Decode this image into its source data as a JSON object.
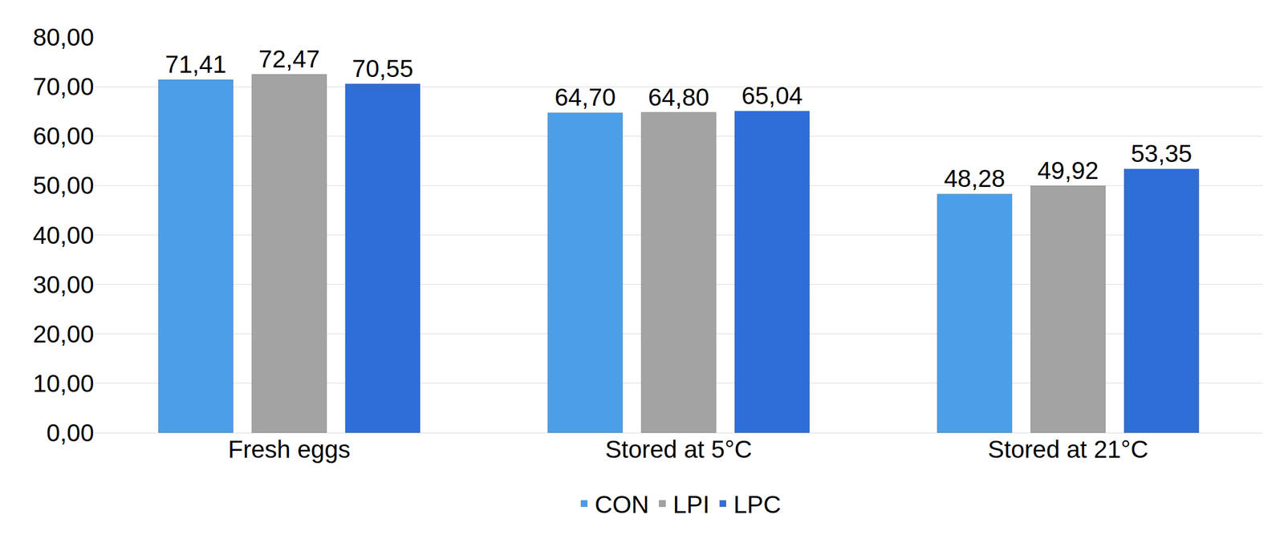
{
  "chart_data": {
    "type": "bar",
    "categories": [
      "Fresh eggs",
      "Stored at 5°C",
      "Stored at 21°C"
    ],
    "series": [
      {
        "name": "CON",
        "color": "#4a9fe8",
        "values": [
          71.41,
          64.7,
          48.28
        ],
        "value_labels": [
          "71,41",
          "64,70",
          "48,28"
        ]
      },
      {
        "name": "LPI",
        "color": "#a3a3a3",
        "values": [
          72.47,
          64.8,
          49.92
        ],
        "value_labels": [
          "72,47",
          "64,80",
          "49,92"
        ]
      },
      {
        "name": "LPC",
        "color": "#2f6dd8",
        "values": [
          70.55,
          65.04,
          53.35
        ],
        "value_labels": [
          "70,55",
          "65,04",
          "53,35"
        ]
      }
    ],
    "ylim": [
      0,
      80
    ],
    "yticks": [
      {
        "value": 0,
        "label": "0,00"
      },
      {
        "value": 10,
        "label": "10,00"
      },
      {
        "value": 20,
        "label": "20,00"
      },
      {
        "value": 30,
        "label": "30,00"
      },
      {
        "value": 40,
        "label": "40,00"
      },
      {
        "value": 50,
        "label": "50,00"
      },
      {
        "value": 60,
        "label": "60,00"
      },
      {
        "value": 70,
        "label": "70,00"
      },
      {
        "value": 80,
        "label": "80,00"
      }
    ],
    "grid": true,
    "data_labels": true,
    "legend": "bottom"
  }
}
